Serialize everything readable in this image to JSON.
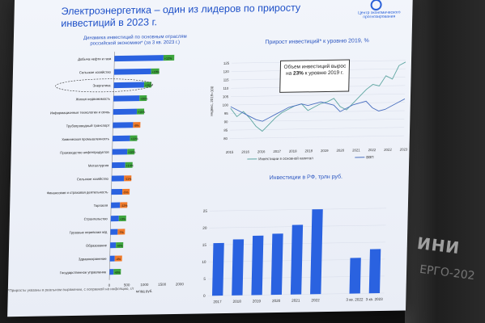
{
  "slide": {
    "title": "Электроэнергетика – один из лидеров по приросту инвестиций в 2023 г.",
    "logo_text": "Центр экономического прогнозирования",
    "footnote": "*Приросты указаны в реальном выражении, с поправкой на инфляцию, г/г"
  },
  "room": {
    "sign_top": "ИНИ",
    "sign_bottom": "ЕРГО-202"
  },
  "colors": {
    "bar_blue": "#2a62e0",
    "bar_green": "#3ea63e",
    "bar_orange": "#f07a2a",
    "slide_bg": "#eef2f9",
    "title_blue": "#1e50c8"
  },
  "chart_data": [
    {
      "type": "bar",
      "orientation": "horizontal",
      "title": "Динамика инвестиций по основным отраслям российской экономики* (за 3 кв. 2023 г.)",
      "xlabel": "млрд руб.",
      "xticks": [
        "0",
        "500",
        "1000",
        "1500",
        "2000"
      ],
      "xlim": [
        0,
        2000
      ],
      "highlighted_category": "Энергетика",
      "categories": [
        "Добыча нефти и газа",
        "Сельское хозяйство",
        "Энергетика",
        "Жилая недвижимость",
        "Информационные технологии и связь",
        "Трубопроводный транспорт",
        "Химическая промышленность",
        "Производство нефтепродуктов",
        "Металлургия",
        "Сельское хозяйство",
        "Финансовая и страховая деятельность",
        "Торговля",
        "Строительство",
        "Грузовые перевозки ж/д",
        "Образование",
        "Здравоохранение",
        "Государственное управление"
      ],
      "values": [
        1700,
        1280,
        1050,
        900,
        820,
        700,
        600,
        520,
        460,
        430,
        380,
        310,
        280,
        250,
        200,
        170,
        140
      ],
      "growth_labels": [
        "+12%",
        "+18%",
        "+25%",
        "+20%",
        "+15%",
        "-8%",
        "+22%",
        "+10%",
        "+14%",
        "-11%",
        "-5%",
        "-12%",
        "+9%",
        "-7%",
        "+6%",
        "-4%",
        "+8%"
      ],
      "growth_colors": [
        "green",
        "green",
        "green",
        "green",
        "green",
        "orange",
        "green",
        "green",
        "green",
        "orange",
        "orange",
        "orange",
        "green",
        "orange",
        "green",
        "orange",
        "green"
      ]
    },
    {
      "type": "line",
      "title": "Прирост инвестиций* к уровню 2019, %",
      "ylabel": "индекс, 2019=100",
      "ylim": [
        75,
        130
      ],
      "yticks": [
        80,
        85,
        90,
        95,
        100,
        105,
        110,
        115,
        120,
        125
      ],
      "xticks": [
        "2015",
        "2016",
        "2016",
        "2017",
        "2018",
        "2018",
        "2019",
        "2020",
        "2021",
        "2022",
        "2022",
        "2023"
      ],
      "annotation": {
        "before": "Объем инвестиций вырос на ",
        "bold": "23%",
        "after": " к уровню 2019 г."
      },
      "series": [
        {
          "name": "Инвестиции в основной капитал",
          "color": "#5ca5a0",
          "values": [
            98,
            93,
            96,
            92,
            87,
            84,
            88,
            92,
            95,
            97,
            99,
            100,
            96,
            98,
            100,
            101,
            103,
            98,
            96,
            100,
            104,
            108,
            111,
            110,
            116,
            114,
            122,
            124
          ]
        },
        {
          "name": "ВВП",
          "color": "#4a6fbf",
          "values": [
            99,
            97,
            95,
            93,
            91,
            90,
            92,
            94,
            96,
            98,
            99,
            100,
            99,
            100,
            101,
            100,
            99,
            95,
            97,
            99,
            100,
            101,
            97,
            95,
            96,
            98,
            100,
            102
          ]
        }
      ]
    },
    {
      "type": "bar",
      "title": "Инвестиции в РФ, трлн руб.",
      "ylim": [
        0,
        30
      ],
      "yticks": [
        0,
        5,
        10,
        15,
        20,
        25
      ],
      "categories": [
        "2017",
        "2018",
        "2019",
        "2020",
        "2021",
        "2022",
        "",
        "3 кв. 2022",
        "3 кв. 2023"
      ],
      "values": [
        15.5,
        16.5,
        17.5,
        18,
        20.5,
        25,
        null,
        10.5,
        13
      ]
    }
  ]
}
